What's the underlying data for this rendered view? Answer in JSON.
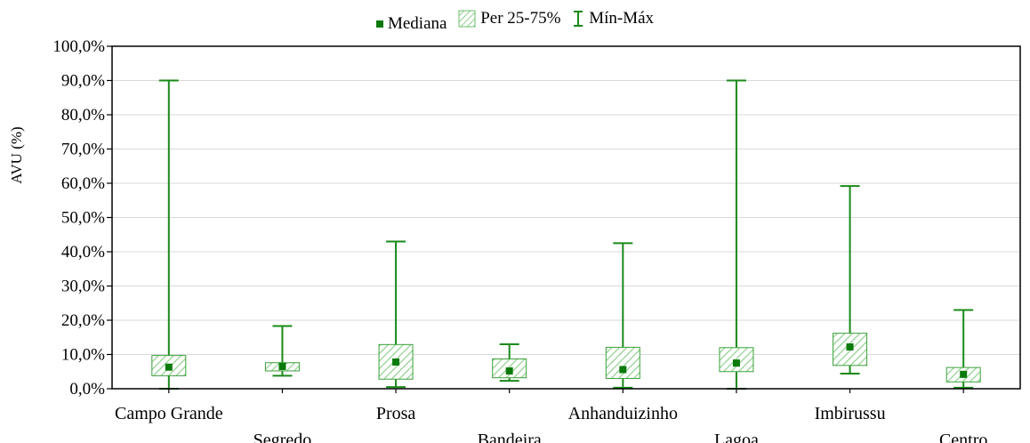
{
  "chart_data": {
    "type": "boxplot",
    "ylabel": "AVU (%)",
    "ylim": [
      0,
      100
    ],
    "yticks": [
      0,
      10,
      20,
      30,
      40,
      50,
      60,
      70,
      80,
      90,
      100
    ],
    "ytick_labels": [
      "0,0%",
      "10,0%",
      "20,0%",
      "30,0%",
      "40,0%",
      "50,0%",
      "60,0%",
      "70,0%",
      "80,0%",
      "90,0%",
      "100,0%"
    ],
    "grid": true,
    "legend_position": "top",
    "legend": {
      "median": "Mediana",
      "box": "Per 25-75%",
      "whisker": "Mín-Máx"
    },
    "colors": {
      "median": "#0a7a0a",
      "box_stroke": "#3aa03a",
      "box_hatch": "#8fd08f",
      "whisker": "#1a8a1a",
      "grid": "#d9d9d9"
    },
    "categories": [
      "Campo Grande",
      "Segredo",
      "Prosa",
      "Bandeira",
      "Anhanduizinho",
      "Lagoa",
      "Imbirussu",
      "Centro"
    ],
    "series": [
      {
        "category": "Campo Grande",
        "min": 0.0,
        "q1": 3.8,
        "median": 6.3,
        "q3": 9.7,
        "max": 90.0
      },
      {
        "category": "Segredo",
        "min": 3.8,
        "q1": 5.2,
        "median": 6.5,
        "q3": 7.6,
        "max": 18.3
      },
      {
        "category": "Prosa",
        "min": 0.5,
        "q1": 2.8,
        "median": 7.8,
        "q3": 12.9,
        "max": 43.0
      },
      {
        "category": "Bandeira",
        "min": 2.3,
        "q1": 3.2,
        "median": 5.2,
        "q3": 8.7,
        "max": 13.0
      },
      {
        "category": "Anhanduizinho",
        "min": 0.3,
        "q1": 3.0,
        "median": 5.6,
        "q3": 12.1,
        "max": 42.5
      },
      {
        "category": "Lagoa",
        "min": 0.0,
        "q1": 5.0,
        "median": 7.5,
        "q3": 12.0,
        "max": 90.0
      },
      {
        "category": "Imbirussu",
        "min": 4.4,
        "q1": 6.8,
        "median": 12.2,
        "q3": 16.2,
        "max": 59.2
      },
      {
        "category": "Centro",
        "min": 0.3,
        "q1": 2.0,
        "median": 4.2,
        "q3": 6.2,
        "max": 23.0
      }
    ]
  }
}
